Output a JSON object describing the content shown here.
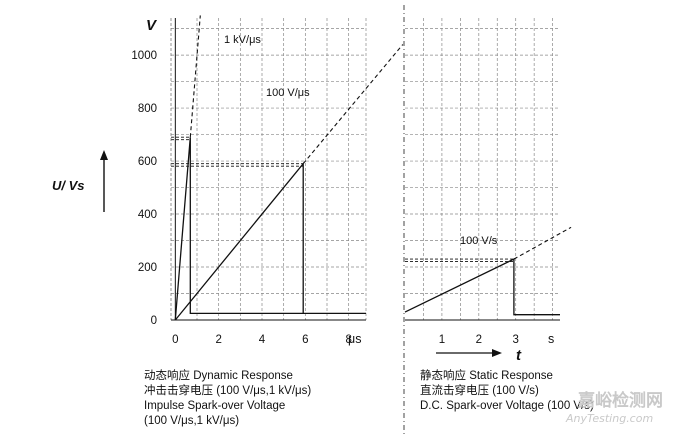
{
  "chart_data": [
    {
      "type": "line",
      "panel": "dynamic",
      "ylabel": "V",
      "side_label": "U/ Vs",
      "xunit": "μs",
      "xlim": [
        -0.2,
        8.8
      ],
      "ylim": [
        0,
        1140
      ],
      "xticks": [
        0,
        2,
        4,
        6,
        8
      ],
      "yticks": [
        0,
        200,
        400,
        600,
        800,
        1000
      ],
      "grid": true,
      "series": [
        {
          "name": "1 kV/μs",
          "style": "solid",
          "points": [
            [
              0,
              0
            ],
            [
              0.69,
              690
            ],
            [
              0.69,
              25
            ],
            [
              8.8,
              25
            ]
          ]
        },
        {
          "name": "1 kV/μs",
          "style": "dashed",
          "points": [
            [
              0.69,
              690
            ],
            [
              1.15,
              1150
            ]
          ]
        },
        {
          "name": "100 V/μs",
          "style": "solid",
          "points": [
            [
              0,
              0
            ],
            [
              5.9,
              590
            ],
            [
              5.9,
              25
            ]
          ]
        },
        {
          "name": "100 V/μs",
          "style": "dashed",
          "points": [
            [
              5.9,
              590
            ],
            [
              10.5,
              1040
            ]
          ]
        }
      ],
      "reference_lines": [
        {
          "y": 690,
          "x_end": 0.69
        },
        {
          "y": 590,
          "x_end": 5.9
        }
      ],
      "annotations": [
        "1 kV/μs",
        "100 V/μs"
      ]
    },
    {
      "type": "line",
      "panel": "static",
      "xunit": "s",
      "xlabel": "t",
      "xlim": [
        0,
        4.2
      ],
      "ylim": [
        0,
        1140
      ],
      "xticks": [
        1,
        2,
        3
      ],
      "grid": true,
      "series": [
        {
          "name": "100 V/s",
          "style": "solid",
          "points": [
            [
              0,
              30
            ],
            [
              2.95,
              230
            ],
            [
              2.95,
              20
            ],
            [
              4.2,
              20
            ]
          ]
        },
        {
          "name": "100 V/s",
          "style": "dashed",
          "points": [
            [
              2.95,
              230
            ],
            [
              4.5,
              350
            ]
          ]
        }
      ],
      "reference_lines": [
        {
          "y": 230,
          "x_end": 2.95
        }
      ],
      "annotations": [
        "100 V/s"
      ]
    }
  ],
  "captions": {
    "left": {
      "line1": "动态响应 Dynamic Response",
      "line2": "冲击击穿电压 (100 V/μs,1 kV/μs)",
      "line3": "Impulse Spark-over Voltage",
      "line4": "(100 V/μs,1 kV/μs)"
    },
    "right": {
      "line1": "静态响应 Static Response",
      "line2": "直流击穿电压 (100 V/s)",
      "line3": "D.C. Spark-over Voltage (100 V/s)"
    }
  },
  "watermark": {
    "cn": "嘉峪检测网",
    "en": "AnyTesting.com"
  }
}
